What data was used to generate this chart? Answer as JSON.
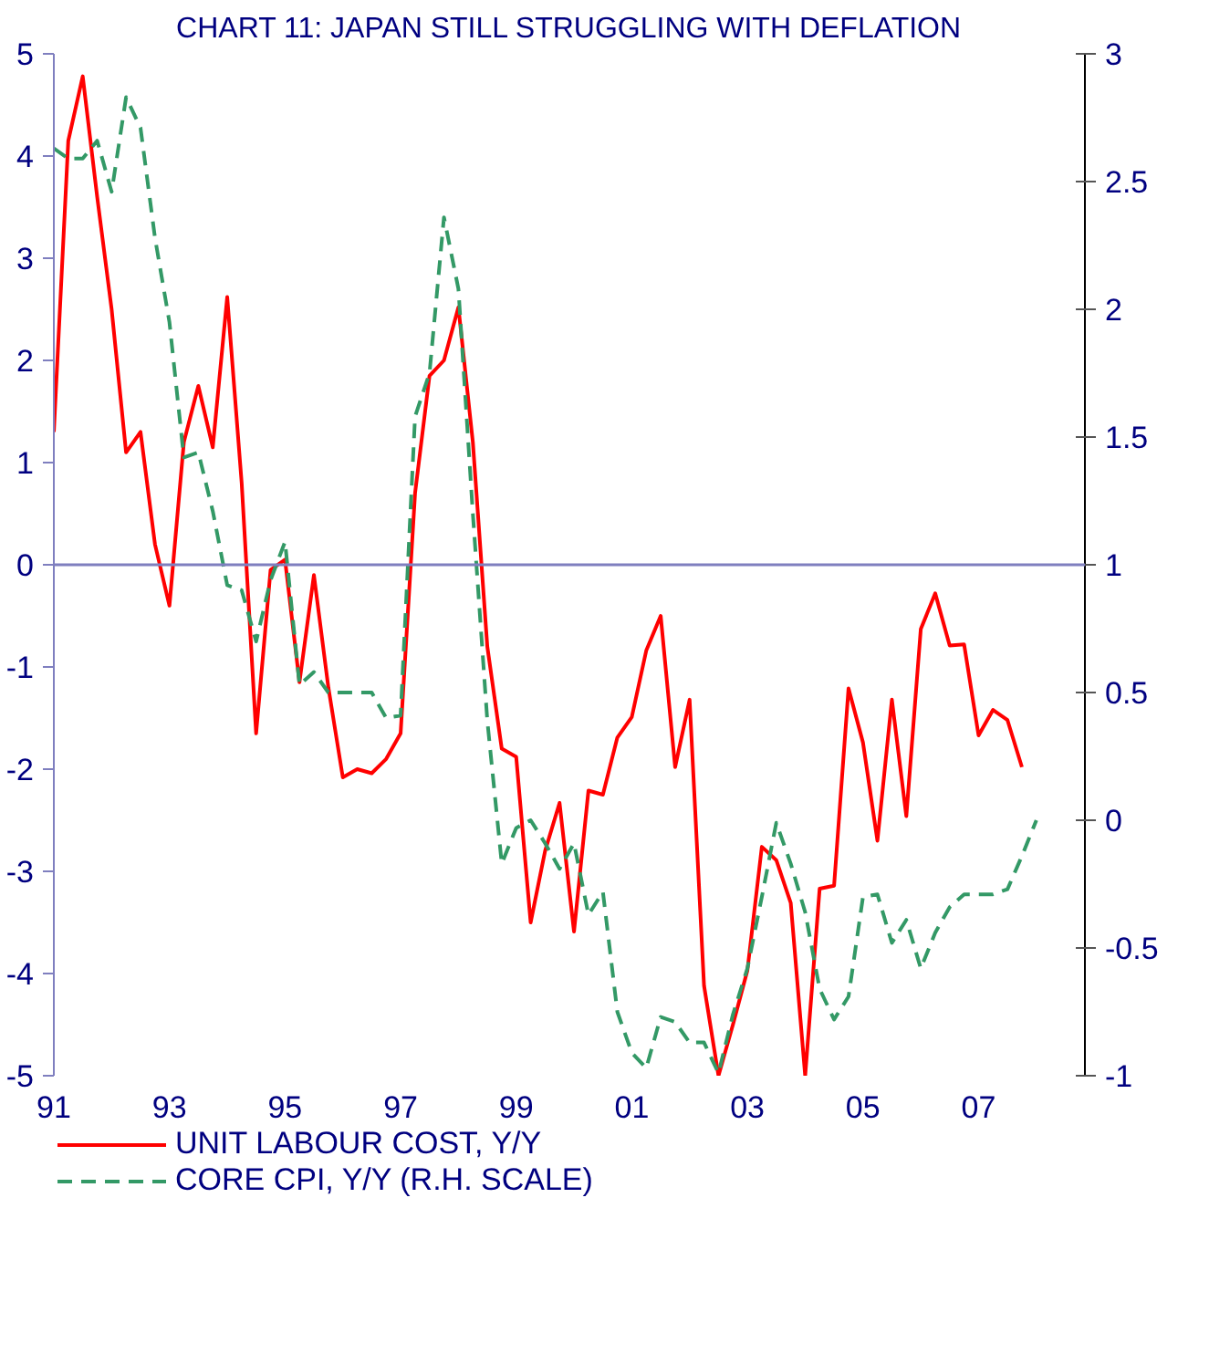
{
  "chart_data": {
    "type": "line",
    "title": "CHART 11: JAPAN STILL STRUGGLING WITH DEFLATION",
    "xlim": [
      1991,
      2008.84
    ],
    "xticks": [
      {
        "value": 1991,
        "label": "91"
      },
      {
        "value": 1993,
        "label": "93"
      },
      {
        "value": 1995,
        "label": "95"
      },
      {
        "value": 1997,
        "label": "97"
      },
      {
        "value": 1999,
        "label": "99"
      },
      {
        "value": 2001,
        "label": "01"
      },
      {
        "value": 2003,
        "label": "03"
      },
      {
        "value": 2005,
        "label": "05"
      },
      {
        "value": 2007,
        "label": "07"
      }
    ],
    "ylim": [
      -5,
      5
    ],
    "yticks": [
      -5,
      -4,
      -3,
      -2,
      -1,
      0,
      1,
      2,
      3,
      4,
      5
    ],
    "y2lim": [
      -1,
      3
    ],
    "y2ticks": [
      -1,
      -0.5,
      0,
      0.5,
      1,
      1.5,
      2,
      2.5,
      3
    ],
    "grid": false,
    "legend": "bottom",
    "ref_lines": [
      {
        "axis": "y",
        "value": 0,
        "color": "#7f7fbf"
      }
    ],
    "series": [
      {
        "name": "UNIT LABOUR COST, Y/Y",
        "color": "#ff0000",
        "line_style": "solid",
        "x": [
          1991.0,
          1991.25,
          1991.5,
          1991.75,
          1992.0,
          1992.25,
          1992.5,
          1992.75,
          1993.0,
          1993.25,
          1993.5,
          1993.75,
          1994.0,
          1994.25,
          1994.5,
          1994.75,
          1995.0,
          1995.25,
          1995.5,
          1995.75,
          1996.0,
          1996.25,
          1996.5,
          1996.75,
          1997.0,
          1997.25,
          1997.5,
          1997.75,
          1998.0,
          1998.25,
          1998.5,
          1998.75,
          1999.0,
          1999.25,
          1999.5,
          1999.75,
          2000.0,
          2000.25,
          2000.5,
          2000.75,
          2001.0,
          2001.25,
          2001.5,
          2001.75,
          2002.0,
          2002.25,
          2002.5,
          2002.75,
          2003.0,
          2003.25,
          2003.5,
          2003.75,
          2004.0,
          2004.25,
          2004.5,
          2004.75,
          2005.0,
          2005.25,
          2005.5,
          2005.75,
          2006.0,
          2006.25,
          2006.5,
          2006.75,
          2007.0,
          2007.25,
          2007.5,
          2007.75
        ],
        "values": [
          1.3,
          4.15,
          4.78,
          3.6,
          2.5,
          1.1,
          1.3,
          0.2,
          -0.4,
          1.2,
          1.75,
          1.15,
          2.62,
          0.8,
          -1.65,
          -0.05,
          0.05,
          -1.15,
          -0.1,
          -1.2,
          -2.08,
          -2.0,
          -2.04,
          -1.9,
          -1.65,
          0.7,
          1.85,
          2.0,
          2.52,
          1.2,
          -0.8,
          -1.8,
          -1.88,
          -3.5,
          -2.8,
          -2.33,
          -3.59,
          -2.21,
          -2.25,
          -1.69,
          -1.49,
          -0.84,
          -0.5,
          -1.98,
          -1.32,
          -4.12,
          -5.0,
          -4.5,
          -3.97,
          -2.76,
          -2.89,
          -3.31,
          -5.0,
          -3.17,
          -3.14,
          -1.21,
          -1.74,
          -2.7,
          -1.32,
          -2.46,
          -0.63,
          -0.28,
          -0.79,
          -0.78,
          -1.67,
          -1.42,
          -1.52,
          -1.98
        ]
      },
      {
        "name": "CORE CPI, Y/Y (R.H. SCALE)",
        "color": "#339966",
        "line_style": "dashed",
        "axis": "y2",
        "x": [
          1991.0,
          1991.25,
          1991.5,
          1991.75,
          1992.0,
          1992.25,
          1992.5,
          1992.75,
          1993.0,
          1993.25,
          1993.5,
          1993.75,
          1994.0,
          1994.25,
          1994.5,
          1994.75,
          1995.0,
          1995.25,
          1995.5,
          1995.75,
          1996.0,
          1996.25,
          1996.5,
          1996.75,
          1997.0,
          1997.25,
          1997.5,
          1997.75,
          1998.0,
          1998.25,
          1998.5,
          1998.75,
          1999.0,
          1999.25,
          1999.5,
          1999.75,
          2000.0,
          2000.25,
          2000.5,
          2000.75,
          2001.0,
          2001.25,
          2001.5,
          2001.75,
          2002.0,
          2002.25,
          2002.5,
          2002.75,
          2003.0,
          2003.25,
          2003.5,
          2003.75,
          2004.0,
          2004.25,
          2004.5,
          2004.75,
          2005.0,
          2005.25,
          2005.5,
          2005.75,
          2006.0,
          2006.25,
          2006.5,
          2006.75,
          2007.0,
          2007.25,
          2007.5,
          2007.75,
          2008.0
        ],
        "values": [
          2.63,
          2.59,
          2.59,
          2.66,
          2.46,
          2.83,
          2.71,
          2.28,
          1.95,
          1.42,
          1.44,
          1.21,
          0.92,
          0.9,
          0.7,
          0.94,
          1.09,
          0.53,
          0.58,
          0.5,
          0.5,
          0.5,
          0.5,
          0.4,
          0.41,
          1.58,
          1.75,
          2.36,
          2.08,
          1.2,
          0.39,
          -0.17,
          -0.03,
          0.0,
          -0.09,
          -0.19,
          -0.09,
          -0.37,
          -0.28,
          -0.75,
          -0.91,
          -0.97,
          -0.77,
          -0.79,
          -0.87,
          -0.87,
          -0.99,
          -0.76,
          -0.58,
          -0.3,
          -0.01,
          -0.17,
          -0.36,
          -0.66,
          -0.78,
          -0.69,
          -0.3,
          -0.29,
          -0.48,
          -0.39,
          -0.58,
          -0.44,
          -0.34,
          -0.29,
          -0.29,
          -0.29,
          -0.27,
          -0.14,
          0.0
        ]
      }
    ]
  }
}
